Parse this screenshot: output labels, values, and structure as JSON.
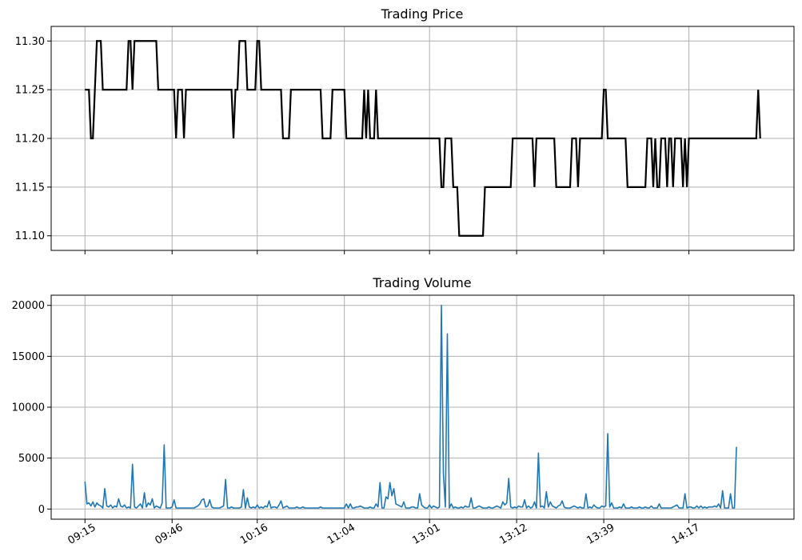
{
  "chart_data": [
    {
      "type": "line",
      "title": "Trading Price",
      "xlabel": "",
      "ylabel": "",
      "ylim": [
        11.085,
        11.315
      ],
      "yticks": [
        11.1,
        11.15,
        11.2,
        11.25,
        11.3
      ],
      "ytick_labels": [
        "11.10",
        "11.15",
        "11.20",
        "11.25",
        "11.30"
      ],
      "grid": true,
      "series": [
        {
          "color": "#000000",
          "values": [
            11.25,
            11.25,
            11.25,
            11.2,
            11.2,
            11.25,
            11.3,
            11.3,
            11.3,
            11.25,
            11.25,
            11.25,
            11.25,
            11.25,
            11.25,
            11.25,
            11.25,
            11.25,
            11.25,
            11.25,
            11.25,
            11.25,
            11.3,
            11.3,
            11.25,
            11.3,
            11.3,
            11.3,
            11.3,
            11.3,
            11.3,
            11.3,
            11.3,
            11.3,
            11.3,
            11.3,
            11.3,
            11.25,
            11.25,
            11.25,
            11.25,
            11.25,
            11.25,
            11.25,
            11.25,
            11.25,
            11.2,
            11.25,
            11.25,
            11.25,
            11.2,
            11.25,
            11.25,
            11.25,
            11.25,
            11.25,
            11.25,
            11.25,
            11.25,
            11.25,
            11.25,
            11.25,
            11.25,
            11.25,
            11.25,
            11.25,
            11.25,
            11.25,
            11.25,
            11.25,
            11.25,
            11.25,
            11.25,
            11.25,
            11.25,
            11.2,
            11.25,
            11.25,
            11.3,
            11.3,
            11.3,
            11.3,
            11.25,
            11.25,
            11.25,
            11.25,
            11.25,
            11.3,
            11.3,
            11.25,
            11.25,
            11.25,
            11.25,
            11.25,
            11.25,
            11.25,
            11.25,
            11.25,
            11.25,
            11.25,
            11.2,
            11.2,
            11.2,
            11.2,
            11.25,
            11.25,
            11.25,
            11.25,
            11.25,
            11.25,
            11.25,
            11.25,
            11.25,
            11.25,
            11.25,
            11.25,
            11.25,
            11.25,
            11.25,
            11.25,
            11.2,
            11.2,
            11.2,
            11.2,
            11.2,
            11.25,
            11.25,
            11.25,
            11.25,
            11.25,
            11.25,
            11.25,
            11.2,
            11.2,
            11.2,
            11.2,
            11.2,
            11.2,
            11.2,
            11.2,
            11.2,
            11.25,
            11.2,
            11.25,
            11.2,
            11.2,
            11.2,
            11.25,
            11.2,
            11.2,
            11.2,
            11.2,
            11.2,
            11.2,
            11.2,
            11.2,
            11.2,
            11.2,
            11.2,
            11.2,
            11.2,
            11.2,
            11.2,
            11.2,
            11.2,
            11.2,
            11.2,
            11.2,
            11.2,
            11.2,
            11.2,
            11.2,
            11.2,
            11.2,
            11.2,
            11.2,
            11.2,
            11.2,
            11.2,
            11.2,
            11.15,
            11.15,
            11.2,
            11.2,
            11.2,
            11.2,
            11.15,
            11.15,
            11.15,
            11.1,
            11.1,
            11.1,
            11.1,
            11.1,
            11.1,
            11.1,
            11.1,
            11.1,
            11.1,
            11.1,
            11.1,
            11.1,
            11.15,
            11.15,
            11.15,
            11.15,
            11.15,
            11.15,
            11.15,
            11.15,
            11.15,
            11.15,
            11.15,
            11.15,
            11.15,
            11.15,
            11.2,
            11.2,
            11.2,
            11.2,
            11.2,
            11.2,
            11.2,
            11.2,
            11.2,
            11.2,
            11.2,
            11.15,
            11.2,
            11.2,
            11.2,
            11.2,
            11.2,
            11.2,
            11.2,
            11.2,
            11.2,
            11.2,
            11.15,
            11.15,
            11.15,
            11.15,
            11.15,
            11.15,
            11.15,
            11.15,
            11.2,
            11.2,
            11.2,
            11.15,
            11.2,
            11.2,
            11.2,
            11.2,
            11.2,
            11.2,
            11.2,
            11.2,
            11.2,
            11.2,
            11.2,
            11.2,
            11.25,
            11.25,
            11.2,
            11.2,
            11.2,
            11.2,
            11.2,
            11.2,
            11.2,
            11.2,
            11.2,
            11.2,
            11.15,
            11.15,
            11.15,
            11.15,
            11.15,
            11.15,
            11.15,
            11.15,
            11.15,
            11.15,
            11.2,
            11.2,
            11.2,
            11.15,
            11.2,
            11.15,
            11.15,
            11.2,
            11.2,
            11.2,
            11.15,
            11.2,
            11.2,
            11.15,
            11.2,
            11.2,
            11.2,
            11.2,
            11.15,
            11.2,
            11.15,
            11.2,
            11.2,
            11.2,
            11.2,
            11.2,
            11.2,
            11.2,
            11.2,
            11.2,
            11.2,
            11.2,
            11.2,
            11.2,
            11.2,
            11.2,
            11.2,
            11.2,
            11.2,
            11.2,
            11.2,
            11.2,
            11.2,
            11.2,
            11.2,
            11.2,
            11.2,
            11.2,
            11.2,
            11.2,
            11.2,
            11.2,
            11.2,
            11.2,
            11.2,
            11.2,
            11.25,
            11.2
          ]
        }
      ]
    },
    {
      "type": "line",
      "title": "Trading Volume",
      "xlabel": "",
      "ylabel": "",
      "ylim": [
        -1000,
        21000
      ],
      "yticks": [
        0,
        5000,
        10000,
        15000,
        20000
      ],
      "ytick_labels": [
        "0",
        "5000",
        "10000",
        "15000",
        "20000"
      ],
      "grid": true,
      "x_tick_positions": [
        0,
        44,
        87,
        131,
        174,
        218,
        262,
        305
      ],
      "x_tick_labels": [
        "09:15",
        "09:46",
        "10:16",
        "11:04",
        "13:01",
        "13:12",
        "13:39",
        "14:17"
      ],
      "series": [
        {
          "color": "#1f77b4",
          "values": [
            2700,
            500,
            600,
            300,
            700,
            200,
            600,
            400,
            300,
            100,
            2000,
            300,
            200,
            400,
            100,
            300,
            200,
            1000,
            300,
            200,
            400,
            100,
            200,
            100,
            4400,
            200,
            100,
            300,
            500,
            100,
            1600,
            200,
            600,
            400,
            1000,
            100,
            300,
            200,
            100,
            600,
            6300,
            100,
            100,
            100,
            200,
            900,
            100,
            100,
            100,
            100,
            100,
            100,
            100,
            100,
            100,
            100,
            200,
            300,
            500,
            900,
            1000,
            200,
            300,
            900,
            200,
            100,
            100,
            100,
            100,
            200,
            300,
            2900,
            100,
            100,
            200,
            100,
            100,
            100,
            100,
            200,
            1900,
            100,
            1100,
            200,
            100,
            200,
            100,
            400,
            100,
            200,
            100,
            300,
            200,
            800,
            100,
            200,
            200,
            100,
            400,
            800,
            100,
            200,
            300,
            100,
            100,
            100,
            100,
            200,
            100,
            100,
            200,
            100,
            100,
            100,
            100,
            100,
            100,
            100,
            100,
            200,
            100,
            100,
            100,
            100,
            100,
            100,
            100,
            100,
            100,
            100,
            100,
            100,
            500,
            100,
            500,
            100,
            100,
            200,
            200,
            300,
            200,
            100,
            100,
            100,
            200,
            100,
            100,
            500,
            200,
            2600,
            100,
            100,
            1200,
            1000,
            2600,
            1300,
            2000,
            500,
            400,
            300,
            200,
            700,
            100,
            100,
            100,
            200,
            200,
            100,
            100,
            1500,
            400,
            200,
            100,
            100,
            400,
            100,
            300,
            200,
            100,
            200,
            20000,
            3500,
            200,
            17200,
            100,
            500,
            100,
            200,
            100,
            100,
            200,
            100,
            300,
            200,
            200,
            1100,
            100,
            100,
            200,
            300,
            200,
            100,
            100,
            100,
            200,
            100,
            100,
            200,
            300,
            200,
            100,
            700,
            400,
            600,
            3000,
            200,
            100,
            200,
            100,
            300,
            200,
            200,
            900,
            100,
            300,
            100,
            200,
            700,
            100,
            5500,
            200,
            300,
            100,
            1700,
            200,
            700,
            300,
            200,
            100,
            300,
            400,
            800,
            200,
            100,
            100,
            100,
            200,
            300,
            200,
            100,
            200,
            100,
            100,
            1500,
            100,
            200,
            100,
            400,
            200,
            100,
            100,
            300,
            200,
            300,
            7400,
            200,
            600,
            100,
            100,
            100,
            200,
            100,
            500,
            100,
            100,
            100,
            200,
            100,
            100,
            100,
            200,
            100,
            100,
            200,
            100,
            100,
            300,
            100,
            100,
            100,
            500,
            100,
            100,
            100,
            100,
            100,
            100,
            200,
            300,
            400,
            100,
            100,
            100,
            1500,
            100,
            200,
            200,
            100,
            100,
            300,
            100,
            300,
            100,
            200,
            100,
            200,
            200,
            200,
            300,
            200,
            500,
            100,
            1800,
            100,
            100,
            100,
            1500,
            100,
            100,
            6100
          ]
        }
      ]
    }
  ]
}
